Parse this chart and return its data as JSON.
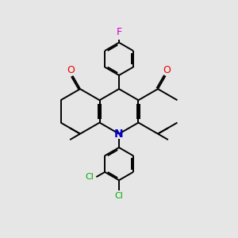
{
  "bg_color": "#e6e6e6",
  "lc": "#000000",
  "o_color": "#ee0000",
  "n_color": "#0000cc",
  "f_color": "#cc00cc",
  "cl_color": "#00aa00",
  "lw": 1.4,
  "doff": 0.018,
  "xlim": [
    -1.55,
    1.55
  ],
  "ylim": [
    -1.55,
    1.55
  ]
}
